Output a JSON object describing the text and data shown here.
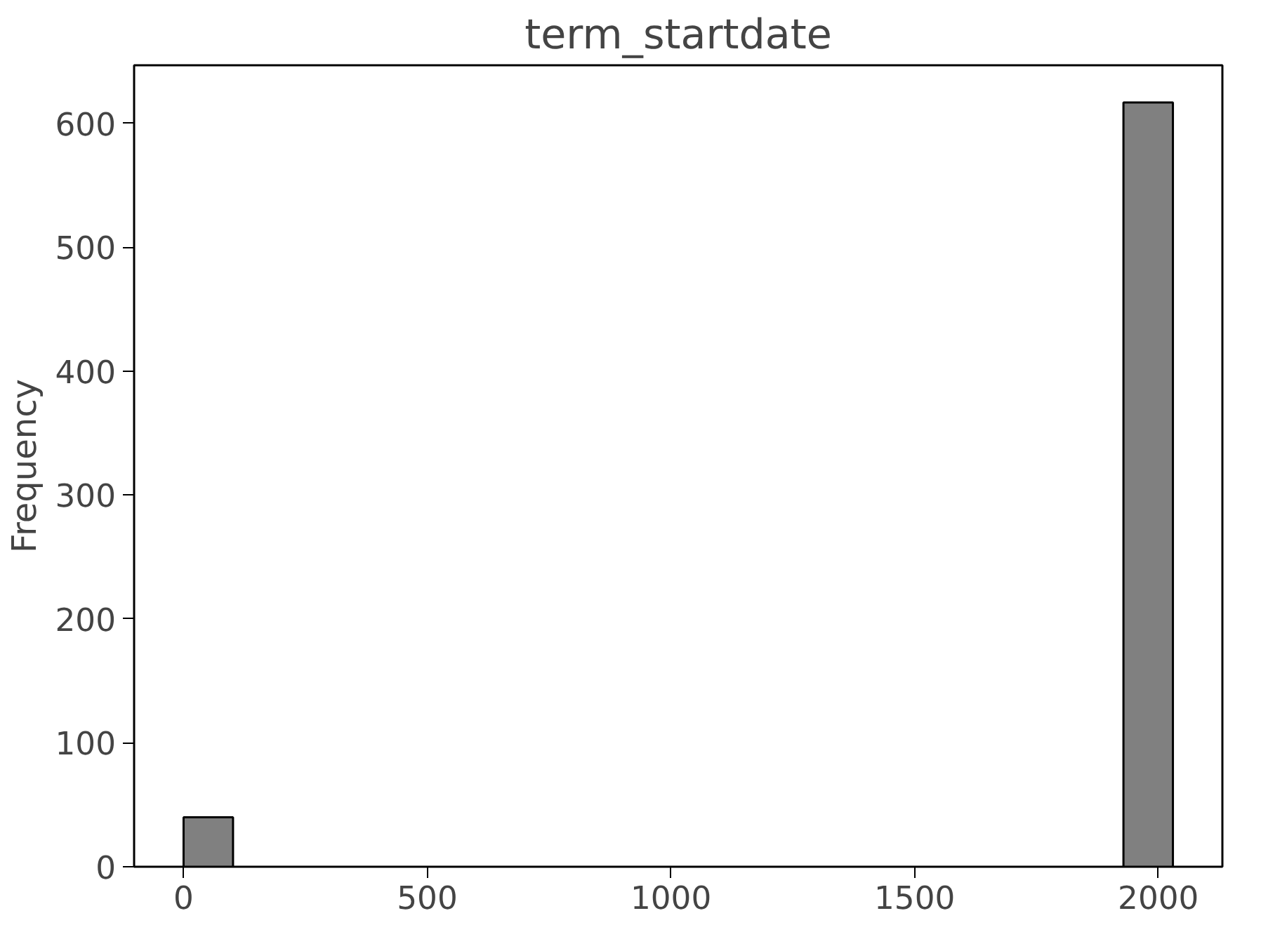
{
  "chart_data": {
    "type": "histogram",
    "title": "term_startdate",
    "ylabel": "Frequency",
    "bins": [
      0,
      101.5,
      203,
      304.5,
      406,
      507.5,
      609,
      710.5,
      812,
      913.5,
      1015,
      1116.5,
      1218,
      1319.5,
      1421,
      1522.5,
      1624,
      1725.5,
      1827,
      1928.5,
      2030
    ],
    "values": [
      40,
      0,
      0,
      0,
      0,
      0,
      0,
      0,
      0,
      0,
      0,
      0,
      0,
      0,
      0,
      0,
      0,
      0,
      0,
      617
    ],
    "color": "#808080",
    "xlim": [
      -101.5,
      2131.5
    ],
    "ylim": [
      0,
      647
    ],
    "xticks": [
      0,
      500,
      1000,
      1500,
      2000
    ],
    "yticks": [
      0,
      100,
      200,
      300,
      400,
      500,
      600
    ],
    "grid": false
  }
}
